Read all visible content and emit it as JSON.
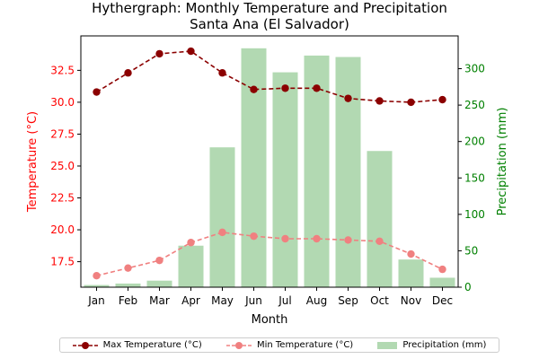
{
  "chart_data": {
    "type": "bar+line",
    "title": "Hythergraph: Monthly Temperature and Precipitation",
    "subtitle": "Santa Ana (El Salvador)",
    "xlabel": "Month",
    "ylabel_left": "Temperature (°C)",
    "ylabel_right": "Precipitation (mm)",
    "categories": [
      "Jan",
      "Feb",
      "Mar",
      "Apr",
      "May",
      "Jun",
      "Jul",
      "Aug",
      "Sep",
      "Oct",
      "Nov",
      "Dec"
    ],
    "y_left_lim": [
      15.5,
      35.2
    ],
    "y_left_ticks": [
      "17.5",
      "20.0",
      "22.5",
      "25.0",
      "27.5",
      "30.0",
      "32.5"
    ],
    "y_right_lim": [
      0,
      345
    ],
    "y_right_ticks": [
      "0",
      "50",
      "100",
      "150",
      "200",
      "250",
      "300"
    ],
    "series": [
      {
        "name": "Max Temperature (°C)",
        "kind": "line",
        "axis": "left",
        "color": "#8b0000",
        "values": [
          30.8,
          32.3,
          33.8,
          34.0,
          32.3,
          31.0,
          31.1,
          31.1,
          30.3,
          30.1,
          30.0,
          30.2
        ]
      },
      {
        "name": "Min Temperature (°C)",
        "kind": "line",
        "axis": "left",
        "color": "#f08080",
        "values": [
          16.4,
          17.0,
          17.6,
          19.0,
          19.8,
          19.5,
          19.3,
          19.3,
          19.2,
          19.1,
          18.1,
          16.9
        ]
      },
      {
        "name": "Precipitation (mm)",
        "kind": "bar",
        "axis": "right",
        "color": "#b2d9b2",
        "values": [
          3,
          5,
          9,
          57,
          192,
          328,
          295,
          318,
          316,
          187,
          38,
          13
        ]
      }
    ],
    "colors": {
      "left_axis": "#ff0000",
      "right_axis": "#008000"
    },
    "legend_position": "bottom-center",
    "grid": false
  }
}
